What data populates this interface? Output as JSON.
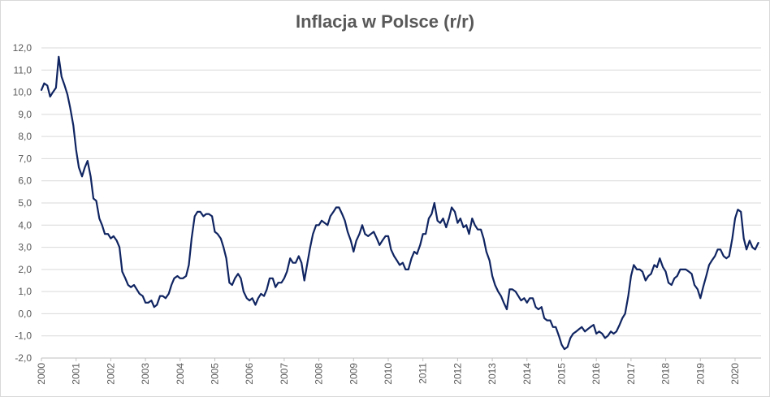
{
  "chart_data": {
    "type": "line",
    "title": "Inflacja w Polsce (r/r)",
    "xlabel": "",
    "ylabel": "",
    "ylim": [
      -2.0,
      12.0
    ],
    "xlim": [
      2000.0,
      2020.75
    ],
    "yticks": [
      -2.0,
      -1.0,
      0.0,
      1.0,
      2.0,
      3.0,
      4.0,
      5.0,
      6.0,
      7.0,
      8.0,
      9.0,
      10.0,
      11.0,
      12.0
    ],
    "ytick_labels": [
      "-2,0",
      "-1,0",
      "0,0",
      "1,0",
      "2,0",
      "3,0",
      "4,0",
      "5,0",
      "6,0",
      "7,0",
      "8,0",
      "9,0",
      "10,0",
      "11,0",
      "12,0"
    ],
    "xtick_labels": [
      "2000",
      "2001",
      "2002",
      "2003",
      "2004",
      "2005",
      "2006",
      "2007",
      "2008",
      "2009",
      "2010",
      "2011",
      "2012",
      "2013",
      "2014",
      "2015",
      "2016",
      "2017",
      "2018",
      "2019",
      "2020"
    ],
    "grid": "horizontal",
    "line_color": "#0f2461",
    "series": [
      {
        "points": [
          [
            2000.0,
            10.1
          ],
          [
            2000.08,
            10.4
          ],
          [
            2000.17,
            10.3
          ],
          [
            2000.25,
            9.8
          ],
          [
            2000.33,
            10.0
          ],
          [
            2000.42,
            10.2
          ],
          [
            2000.5,
            11.6
          ],
          [
            2000.58,
            10.7
          ],
          [
            2000.67,
            10.3
          ],
          [
            2000.75,
            9.9
          ],
          [
            2000.83,
            9.3
          ],
          [
            2000.92,
            8.5
          ],
          [
            2001.0,
            7.4
          ],
          [
            2001.08,
            6.6
          ],
          [
            2001.17,
            6.2
          ],
          [
            2001.25,
            6.6
          ],
          [
            2001.33,
            6.9
          ],
          [
            2001.42,
            6.2
          ],
          [
            2001.5,
            5.2
          ],
          [
            2001.58,
            5.1
          ],
          [
            2001.67,
            4.3
          ],
          [
            2001.75,
            4.0
          ],
          [
            2001.83,
            3.6
          ],
          [
            2001.92,
            3.6
          ],
          [
            2002.0,
            3.4
          ],
          [
            2002.08,
            3.5
          ],
          [
            2002.17,
            3.3
          ],
          [
            2002.25,
            3.0
          ],
          [
            2002.33,
            1.9
          ],
          [
            2002.42,
            1.6
          ],
          [
            2002.5,
            1.3
          ],
          [
            2002.58,
            1.2
          ],
          [
            2002.67,
            1.3
          ],
          [
            2002.75,
            1.1
          ],
          [
            2002.83,
            0.9
          ],
          [
            2002.92,
            0.8
          ],
          [
            2003.0,
            0.5
          ],
          [
            2003.08,
            0.5
          ],
          [
            2003.17,
            0.6
          ],
          [
            2003.25,
            0.3
          ],
          [
            2003.33,
            0.4
          ],
          [
            2003.42,
            0.8
          ],
          [
            2003.5,
            0.8
          ],
          [
            2003.58,
            0.7
          ],
          [
            2003.67,
            0.9
          ],
          [
            2003.75,
            1.3
          ],
          [
            2003.83,
            1.6
          ],
          [
            2003.92,
            1.7
          ],
          [
            2004.0,
            1.6
          ],
          [
            2004.08,
            1.6
          ],
          [
            2004.17,
            1.7
          ],
          [
            2004.25,
            2.2
          ],
          [
            2004.33,
            3.4
          ],
          [
            2004.42,
            4.4
          ],
          [
            2004.5,
            4.6
          ],
          [
            2004.58,
            4.6
          ],
          [
            2004.67,
            4.4
          ],
          [
            2004.75,
            4.5
          ],
          [
            2004.83,
            4.5
          ],
          [
            2004.92,
            4.4
          ],
          [
            2005.0,
            3.7
          ],
          [
            2005.08,
            3.6
          ],
          [
            2005.17,
            3.4
          ],
          [
            2005.25,
            3.0
          ],
          [
            2005.33,
            2.5
          ],
          [
            2005.42,
            1.4
          ],
          [
            2005.5,
            1.3
          ],
          [
            2005.58,
            1.6
          ],
          [
            2005.67,
            1.8
          ],
          [
            2005.75,
            1.6
          ],
          [
            2005.83,
            1.0
          ],
          [
            2005.92,
            0.7
          ],
          [
            2006.0,
            0.6
          ],
          [
            2006.08,
            0.7
          ],
          [
            2006.17,
            0.4
          ],
          [
            2006.25,
            0.7
          ],
          [
            2006.33,
            0.9
          ],
          [
            2006.42,
            0.8
          ],
          [
            2006.5,
            1.1
          ],
          [
            2006.58,
            1.6
          ],
          [
            2006.67,
            1.6
          ],
          [
            2006.75,
            1.2
          ],
          [
            2006.83,
            1.4
          ],
          [
            2006.92,
            1.4
          ],
          [
            2007.0,
            1.6
          ],
          [
            2007.08,
            1.9
          ],
          [
            2007.17,
            2.5
          ],
          [
            2007.25,
            2.3
          ],
          [
            2007.33,
            2.3
          ],
          [
            2007.42,
            2.6
          ],
          [
            2007.5,
            2.3
          ],
          [
            2007.58,
            1.5
          ],
          [
            2007.67,
            2.3
          ],
          [
            2007.75,
            3.0
          ],
          [
            2007.83,
            3.6
          ],
          [
            2007.92,
            4.0
          ],
          [
            2008.0,
            4.0
          ],
          [
            2008.08,
            4.2
          ],
          [
            2008.17,
            4.1
          ],
          [
            2008.25,
            4.0
          ],
          [
            2008.33,
            4.4
          ],
          [
            2008.42,
            4.6
          ],
          [
            2008.5,
            4.8
          ],
          [
            2008.58,
            4.8
          ],
          [
            2008.67,
            4.5
          ],
          [
            2008.75,
            4.2
          ],
          [
            2008.83,
            3.7
          ],
          [
            2008.92,
            3.3
          ],
          [
            2009.0,
            2.8
          ],
          [
            2009.08,
            3.3
          ],
          [
            2009.17,
            3.6
          ],
          [
            2009.25,
            4.0
          ],
          [
            2009.33,
            3.6
          ],
          [
            2009.42,
            3.5
          ],
          [
            2009.5,
            3.6
          ],
          [
            2009.58,
            3.7
          ],
          [
            2009.67,
            3.4
          ],
          [
            2009.75,
            3.1
          ],
          [
            2009.83,
            3.3
          ],
          [
            2009.92,
            3.5
          ],
          [
            2010.0,
            3.5
          ],
          [
            2010.08,
            2.9
          ],
          [
            2010.17,
            2.6
          ],
          [
            2010.25,
            2.4
          ],
          [
            2010.33,
            2.2
          ],
          [
            2010.42,
            2.3
          ],
          [
            2010.5,
            2.0
          ],
          [
            2010.58,
            2.0
          ],
          [
            2010.67,
            2.5
          ],
          [
            2010.75,
            2.8
          ],
          [
            2010.83,
            2.7
          ],
          [
            2010.92,
            3.1
          ],
          [
            2011.0,
            3.6
          ],
          [
            2011.08,
            3.6
          ],
          [
            2011.17,
            4.3
          ],
          [
            2011.25,
            4.5
          ],
          [
            2011.33,
            5.0
          ],
          [
            2011.42,
            4.2
          ],
          [
            2011.5,
            4.1
          ],
          [
            2011.58,
            4.3
          ],
          [
            2011.67,
            3.9
          ],
          [
            2011.75,
            4.3
          ],
          [
            2011.83,
            4.8
          ],
          [
            2011.92,
            4.6
          ],
          [
            2012.0,
            4.1
          ],
          [
            2012.08,
            4.3
          ],
          [
            2012.17,
            3.9
          ],
          [
            2012.25,
            4.0
          ],
          [
            2012.33,
            3.6
          ],
          [
            2012.42,
            4.3
          ],
          [
            2012.5,
            4.0
          ],
          [
            2012.58,
            3.8
          ],
          [
            2012.67,
            3.8
          ],
          [
            2012.75,
            3.4
          ],
          [
            2012.83,
            2.8
          ],
          [
            2012.92,
            2.4
          ],
          [
            2013.0,
            1.7
          ],
          [
            2013.08,
            1.3
          ],
          [
            2013.17,
            1.0
          ],
          [
            2013.25,
            0.8
          ],
          [
            2013.33,
            0.5
          ],
          [
            2013.42,
            0.2
          ],
          [
            2013.5,
            1.1
          ],
          [
            2013.58,
            1.1
          ],
          [
            2013.67,
            1.0
          ],
          [
            2013.75,
            0.8
          ],
          [
            2013.83,
            0.6
          ],
          [
            2013.92,
            0.7
          ],
          [
            2014.0,
            0.5
          ],
          [
            2014.08,
            0.7
          ],
          [
            2014.17,
            0.7
          ],
          [
            2014.25,
            0.3
          ],
          [
            2014.33,
            0.2
          ],
          [
            2014.42,
            0.3
          ],
          [
            2014.5,
            -0.2
          ],
          [
            2014.58,
            -0.3
          ],
          [
            2014.67,
            -0.3
          ],
          [
            2014.75,
            -0.6
          ],
          [
            2014.83,
            -0.6
          ],
          [
            2014.92,
            -1.0
          ],
          [
            2015.0,
            -1.4
          ],
          [
            2015.08,
            -1.6
          ],
          [
            2015.17,
            -1.5
          ],
          [
            2015.25,
            -1.1
          ],
          [
            2015.33,
            -0.9
          ],
          [
            2015.42,
            -0.8
          ],
          [
            2015.5,
            -0.7
          ],
          [
            2015.58,
            -0.6
          ],
          [
            2015.67,
            -0.8
          ],
          [
            2015.75,
            -0.7
          ],
          [
            2015.83,
            -0.6
          ],
          [
            2015.92,
            -0.5
          ],
          [
            2016.0,
            -0.9
          ],
          [
            2016.08,
            -0.8
          ],
          [
            2016.17,
            -0.9
          ],
          [
            2016.25,
            -1.1
          ],
          [
            2016.33,
            -1.0
          ],
          [
            2016.42,
            -0.8
          ],
          [
            2016.5,
            -0.9
          ],
          [
            2016.58,
            -0.8
          ],
          [
            2016.67,
            -0.5
          ],
          [
            2016.75,
            -0.2
          ],
          [
            2016.83,
            0.0
          ],
          [
            2016.92,
            0.8
          ],
          [
            2017.0,
            1.7
          ],
          [
            2017.08,
            2.2
          ],
          [
            2017.17,
            2.0
          ],
          [
            2017.25,
            2.0
          ],
          [
            2017.33,
            1.9
          ],
          [
            2017.42,
            1.5
          ],
          [
            2017.5,
            1.7
          ],
          [
            2017.58,
            1.8
          ],
          [
            2017.67,
            2.2
          ],
          [
            2017.75,
            2.1
          ],
          [
            2017.83,
            2.5
          ],
          [
            2017.92,
            2.1
          ],
          [
            2018.0,
            1.9
          ],
          [
            2018.08,
            1.4
          ],
          [
            2018.17,
            1.3
          ],
          [
            2018.25,
            1.6
          ],
          [
            2018.33,
            1.7
          ],
          [
            2018.42,
            2.0
          ],
          [
            2018.5,
            2.0
          ],
          [
            2018.58,
            2.0
          ],
          [
            2018.67,
            1.9
          ],
          [
            2018.75,
            1.8
          ],
          [
            2018.83,
            1.3
          ],
          [
            2018.92,
            1.1
          ],
          [
            2019.0,
            0.7
          ],
          [
            2019.08,
            1.2
          ],
          [
            2019.17,
            1.7
          ],
          [
            2019.25,
            2.2
          ],
          [
            2019.33,
            2.4
          ],
          [
            2019.42,
            2.6
          ],
          [
            2019.5,
            2.9
          ],
          [
            2019.58,
            2.9
          ],
          [
            2019.67,
            2.6
          ],
          [
            2019.75,
            2.5
          ],
          [
            2019.83,
            2.6
          ],
          [
            2019.92,
            3.4
          ],
          [
            2020.0,
            4.3
          ],
          [
            2020.08,
            4.7
          ],
          [
            2020.17,
            4.6
          ],
          [
            2020.25,
            3.4
          ],
          [
            2020.33,
            2.9
          ],
          [
            2020.42,
            3.3
          ],
          [
            2020.5,
            3.0
          ],
          [
            2020.58,
            2.9
          ],
          [
            2020.67,
            3.2
          ]
        ]
      }
    ]
  }
}
